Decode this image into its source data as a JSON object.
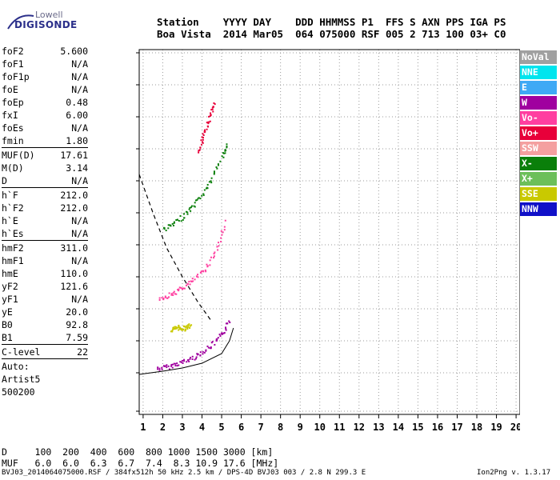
{
  "logo": {
    "line1": "Lowell",
    "line2": "DIGISONDE"
  },
  "header": {
    "line1": "Station    YYYY DAY    DDD HHMMSS P1  FFS S AXN PPS IGA PS",
    "line2": "Boa Vista  2014 Mar05  064 075000 RSF 005 2 713 100 03+ C0"
  },
  "params": [
    {
      "label": "foF2",
      "value": "5.600"
    },
    {
      "label": "foF1",
      "value": "N/A"
    },
    {
      "label": "foF1p",
      "value": "N/A"
    },
    {
      "label": "foE",
      "value": "N/A"
    },
    {
      "label": "foEp",
      "value": "0.48"
    },
    {
      "label": "fxI",
      "value": "6.00"
    },
    {
      "label": "foEs",
      "value": "N/A"
    },
    {
      "label": "fmin",
      "value": "1.80"
    },
    {
      "sep": true
    },
    {
      "label": "MUF(D)",
      "value": "17.61"
    },
    {
      "label": "M(D)",
      "value": "3.14"
    },
    {
      "label": "D",
      "value": "N/A"
    },
    {
      "sep": true
    },
    {
      "label": "h`F",
      "value": "212.0"
    },
    {
      "label": "h`F2",
      "value": "212.0"
    },
    {
      "label": "h`E",
      "value": "N/A"
    },
    {
      "label": "h`Es",
      "value": "N/A"
    },
    {
      "sep": true
    },
    {
      "label": "hmF2",
      "value": "311.0"
    },
    {
      "label": "hmF1",
      "value": "N/A"
    },
    {
      "label": "hmE",
      "value": "110.0"
    },
    {
      "label": "yF2",
      "value": "121.6"
    },
    {
      "label": "yF1",
      "value": "N/A"
    },
    {
      "label": "yE",
      "value": "20.0"
    },
    {
      "label": "B0",
      "value": "92.8"
    },
    {
      "label": "B1",
      "value": "7.59"
    },
    {
      "sep": true
    },
    {
      "label": "C-level",
      "value": "22"
    },
    {
      "sep": true
    },
    {
      "text": "Auto:"
    },
    {
      "text": "Artist5"
    },
    {
      "text": "500200"
    }
  ],
  "legend": [
    {
      "label": "NoVal",
      "color": "#a0a0a0"
    },
    {
      "label": "NNE",
      "color": "#00e5ee"
    },
    {
      "label": "E",
      "color": "#3fa9f5"
    },
    {
      "label": "W",
      "color": "#a0009f"
    },
    {
      "label": "Vo-",
      "color": "#ff3fa0"
    },
    {
      "label": "Vo+",
      "color": "#e8003a"
    },
    {
      "label": "SSW",
      "color": "#f4a0a0"
    },
    {
      "label": "X-",
      "color": "#0a7f0a"
    },
    {
      "label": "X+",
      "color": "#6cbf5a"
    },
    {
      "label": "SSE",
      "color": "#c9c900"
    },
    {
      "label": "NNW",
      "color": "#1010c8"
    }
  ],
  "distance_table": {
    "line1": "D     100  200  400  600  800 1000 1500 3000 [km]",
    "line2": "MUF   6.0  6.0  6.3  6.7  7.4  8.3 10.9 17.6 [MHz]"
  },
  "footer": {
    "left": "BVJ03_2014064075000.RSF / 384fx512h 50 kHz 2.5 km / DPS-4D BVJ03 003 / 2.8 N 299.3 E",
    "right": "Ion2Png v. 1.3.17"
  },
  "chart_data": {
    "type": "scatter",
    "title": "",
    "xlabel": "",
    "ylabel": "",
    "xlim": [
      0.8,
      20.2
    ],
    "ylim": [
      70,
      1210
    ],
    "x_ticks": [
      1,
      2,
      3,
      4,
      5,
      6,
      7,
      8,
      9,
      10,
      11,
      12,
      13,
      14,
      15,
      16,
      17,
      18,
      19,
      20
    ],
    "y_ticks": [
      80,
      200,
      300,
      400,
      500,
      600,
      700,
      800,
      900,
      1000,
      1100,
      1200
    ],
    "grid": "dotted",
    "traces": [
      {
        "name": "W",
        "color": "#a0009f",
        "x": [
          1.7,
          2.2,
          2.7,
          3.2,
          3.7,
          4.2,
          4.7,
          5.1,
          5.4
        ],
        "y": [
          215,
          220,
          230,
          240,
          255,
          275,
          300,
          330,
          370
        ]
      },
      {
        "name": "Vo-",
        "color": "#ff3fa0",
        "x": [
          1.8,
          2.3,
          2.8,
          3.3,
          3.8,
          4.3,
          4.8,
          5.2
        ],
        "y": [
          435,
          445,
          460,
          480,
          505,
          540,
          600,
          680
        ]
      },
      {
        "name": "X-",
        "color": "#0a7f0a",
        "x": [
          2.0,
          2.5,
          3.0,
          3.5,
          4.0,
          4.5,
          5.0,
          5.3
        ],
        "y": [
          650,
          665,
          690,
          720,
          760,
          810,
          880,
          920
        ]
      },
      {
        "name": "Vo+",
        "color": "#e8003a",
        "x": [
          3.8,
          4.0,
          4.2,
          4.4,
          4.6
        ],
        "y": [
          890,
          930,
          970,
          1010,
          1050
        ]
      },
      {
        "name": "SSE",
        "color": "#c9c900",
        "x": [
          2.4,
          2.6,
          2.8,
          3.0,
          3.2,
          3.4
        ],
        "y": [
          335,
          340,
          345,
          340,
          345,
          350
        ]
      }
    ],
    "model_profile": {
      "x": [
        0.8,
        2,
        3,
        4,
        5,
        5.4,
        5.6
      ],
      "y": [
        195,
        205,
        215,
        230,
        260,
        300,
        340
      ]
    },
    "muf_curve": {
      "x": [
        0.8,
        1.5,
        2.2,
        3.0,
        3.8,
        4.5
      ],
      "y": [
        820,
        700,
        590,
        500,
        420,
        360
      ]
    }
  }
}
